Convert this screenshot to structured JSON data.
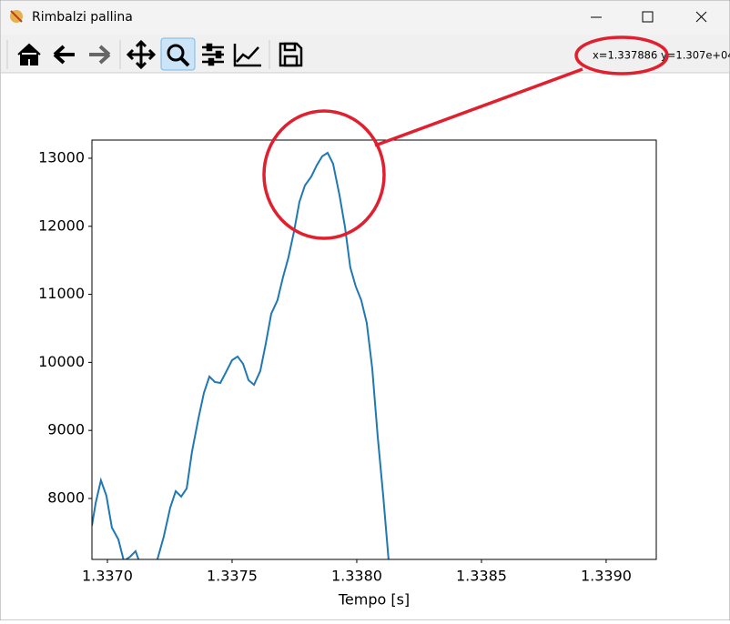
{
  "window": {
    "title": "Rimbalzi pallina"
  },
  "toolbar": {
    "coordinates": "x=1.337886 y=1.307e+04"
  },
  "chart_data": {
    "type": "line",
    "xlabel": "Tempo [s]",
    "color": "#1f77b4",
    "x": [
      1.336938,
      1.336953,
      1.336974,
      1.336996,
      1.337018,
      1.337044,
      1.337066,
      1.337091,
      1.337113,
      1.337135,
      1.337157,
      1.337179,
      1.337201,
      1.337226,
      1.337252,
      1.337274,
      1.337296,
      1.337318,
      1.337339,
      1.337365,
      1.337387,
      1.337409,
      1.337431,
      1.337453,
      1.337474,
      1.3375,
      1.337522,
      1.337544,
      1.337566,
      1.337588,
      1.337613,
      1.337635,
      1.337657,
      1.337682,
      1.337704,
      1.337726,
      1.337748,
      1.33777,
      1.337792,
      1.337818,
      1.337839,
      1.337861,
      1.337883,
      1.337905,
      1.337931,
      1.337953,
      1.337974,
      1.337996,
      1.338018,
      1.33804,
      1.338062,
      1.338084,
      1.338106,
      1.338131
    ],
    "values": [
      7599,
      7933,
      8267,
      8040,
      7572,
      7398,
      7080,
      7144,
      7225,
      7000,
      6900,
      6950,
      7110,
      7438,
      7866,
      8107,
      8027,
      8147,
      8682,
      9176,
      9551,
      9791,
      9711,
      9698,
      9845,
      10032,
      10086,
      9979,
      9738,
      9671,
      9872,
      10273,
      10714,
      10914,
      11249,
      11543,
      11917,
      12358,
      12599,
      12733,
      12893,
      13027,
      13080,
      12920,
      12452,
      11984,
      11396,
      11115,
      10914,
      10580,
      9912,
      8909,
      8040,
      6950
    ],
    "xlim": [
      1.336938,
      1.339201
    ],
    "ylim": [
      7104,
      13267
    ],
    "xticks": [
      {
        "value": 1.337,
        "label": "1.3370"
      },
      {
        "value": 1.3375,
        "label": "1.3375"
      },
      {
        "value": 1.338,
        "label": "1.3380"
      },
      {
        "value": 1.3385,
        "label": "1.3385"
      },
      {
        "value": 1.339,
        "label": "1.3390"
      }
    ],
    "yticks": [
      8000,
      9000,
      10000,
      11000,
      12000,
      13000
    ],
    "grid": false
  }
}
